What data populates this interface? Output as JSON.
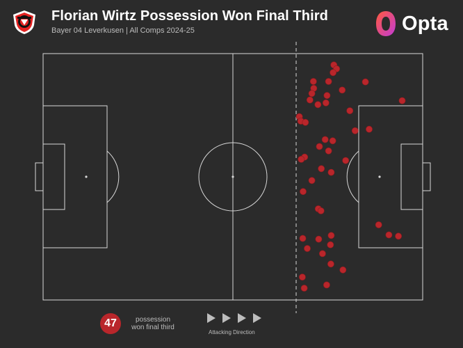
{
  "header": {
    "title": "Florian Wirtz Possession Won Final Third",
    "subtitle": "Bayer 04 Leverkusen | All Comps 2024-25",
    "club_badge_icon": "leverkusen-crest-icon",
    "brand": {
      "name": "Opta",
      "icon": "opta-logo-icon"
    }
  },
  "stat": {
    "count": "47",
    "label_line1": "possession",
    "label_line2": "won final third"
  },
  "direction": {
    "label": "Attacking Direction",
    "icon": "play-arrow-icon"
  },
  "colors": {
    "background": "#2b2b2b",
    "pitch_lines": "#d8d8d8",
    "marker": "#b9262b",
    "accent": "#b9262b"
  },
  "chart_data": {
    "type": "scatter",
    "description_units": "pitch coordinates 0-100 (x = length toward attacking goal, y = width from top)",
    "final_third_line_x": 66.7,
    "points": [
      [
        76.6,
        4.6
      ],
      [
        77.3,
        6.2
      ],
      [
        76.4,
        7.7
      ],
      [
        71.2,
        11.3
      ],
      [
        75.2,
        11.3
      ],
      [
        84.9,
        11.5
      ],
      [
        71.3,
        14.1
      ],
      [
        78.8,
        14.8
      ],
      [
        70.8,
        16.2
      ],
      [
        74.8,
        17.0
      ],
      [
        70.3,
        18.8
      ],
      [
        72.4,
        20.7
      ],
      [
        74.5,
        20.0
      ],
      [
        94.6,
        19.1
      ],
      [
        80.8,
        23.2
      ],
      [
        67.5,
        25.6
      ],
      [
        67.9,
        27.4
      ],
      [
        69.1,
        27.9
      ],
      [
        85.9,
        30.7
      ],
      [
        82.2,
        31.3
      ],
      [
        74.3,
        34.9
      ],
      [
        76.3,
        35.4
      ],
      [
        72.8,
        37.7
      ],
      [
        75.2,
        39.5
      ],
      [
        68.9,
        42.0
      ],
      [
        68.0,
        42.9
      ],
      [
        79.7,
        43.4
      ],
      [
        73.3,
        46.7
      ],
      [
        75.9,
        48.2
      ],
      [
        70.8,
        51.5
      ],
      [
        68.5,
        56.0
      ],
      [
        72.5,
        63.0
      ],
      [
        73.2,
        63.8
      ],
      [
        88.4,
        69.5
      ],
      [
        91.1,
        73.6
      ],
      [
        93.6,
        74.1
      ],
      [
        75.9,
        73.8
      ],
      [
        68.4,
        75.0
      ],
      [
        72.6,
        75.3
      ],
      [
        75.7,
        77.6
      ],
      [
        69.6,
        79.1
      ],
      [
        73.6,
        81.2
      ],
      [
        75.8,
        85.4
      ],
      [
        79.0,
        87.8
      ],
      [
        68.3,
        90.7
      ],
      [
        74.7,
        93.9
      ],
      [
        68.8,
        95.2
      ]
    ]
  }
}
